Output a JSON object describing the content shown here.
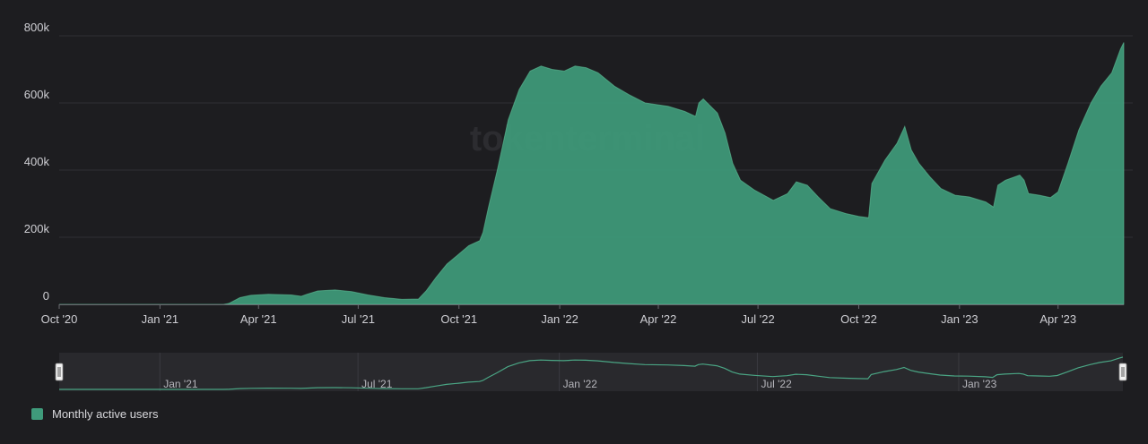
{
  "colors": {
    "background": "#1d1d20",
    "series": "#3f9b7b",
    "grid": "#2f2f34",
    "axis_text": "#cfcfd4",
    "navigator_bg": "#29292d",
    "navigator_line": "#4aa584"
  },
  "watermark": "tokenterminal",
  "chart_data": {
    "type": "area",
    "ylim": [
      0,
      800000
    ],
    "y_ticks": [
      {
        "value": 0,
        "label": "0"
      },
      {
        "value": 200000,
        "label": "200k"
      },
      {
        "value": 400000,
        "label": "400k"
      },
      {
        "value": 600000,
        "label": "600k"
      },
      {
        "value": 800000,
        "label": "800k"
      }
    ],
    "x_range": [
      "2020-10-01",
      "2023-05-31"
    ],
    "x_ticks": [
      {
        "date": "2020-10-01",
        "label": "Oct '20"
      },
      {
        "date": "2021-01-01",
        "label": "Jan '21"
      },
      {
        "date": "2021-04-01",
        "label": "Apr '21"
      },
      {
        "date": "2021-07-01",
        "label": "Jul '21"
      },
      {
        "date": "2021-10-01",
        "label": "Oct '21"
      },
      {
        "date": "2022-01-01",
        "label": "Jan '22"
      },
      {
        "date": "2022-04-01",
        "label": "Apr '22"
      },
      {
        "date": "2022-07-01",
        "label": "Jul '22"
      },
      {
        "date": "2022-10-01",
        "label": "Oct '22"
      },
      {
        "date": "2023-01-01",
        "label": "Jan '23"
      },
      {
        "date": "2023-04-01",
        "label": "Apr '23"
      }
    ],
    "navigator_ticks": [
      {
        "date": "2021-01-01",
        "label": "Jan '21"
      },
      {
        "date": "2021-07-01",
        "label": "Jul '21"
      },
      {
        "date": "2022-01-01",
        "label": "Jan '22"
      },
      {
        "date": "2022-07-01",
        "label": "Jul '22"
      },
      {
        "date": "2023-01-01",
        "label": "Jan '23"
      }
    ],
    "series": [
      {
        "name": "Monthly active users",
        "points": [
          [
            "2020-10-01",
            0
          ],
          [
            "2021-02-28",
            0
          ],
          [
            "2021-03-05",
            3000
          ],
          [
            "2021-03-15",
            20000
          ],
          [
            "2021-03-25",
            27000
          ],
          [
            "2021-04-10",
            30000
          ],
          [
            "2021-05-01",
            28000
          ],
          [
            "2021-05-10",
            24000
          ],
          [
            "2021-05-15",
            30000
          ],
          [
            "2021-05-25",
            40000
          ],
          [
            "2021-06-10",
            43000
          ],
          [
            "2021-06-25",
            38000
          ],
          [
            "2021-07-10",
            28000
          ],
          [
            "2021-07-25",
            20000
          ],
          [
            "2021-08-10",
            15000
          ],
          [
            "2021-08-25",
            16000
          ],
          [
            "2021-09-01",
            40000
          ],
          [
            "2021-09-10",
            80000
          ],
          [
            "2021-09-20",
            120000
          ],
          [
            "2021-10-01",
            150000
          ],
          [
            "2021-10-10",
            175000
          ],
          [
            "2021-10-20",
            190000
          ],
          [
            "2021-10-23",
            215000
          ],
          [
            "2021-10-28",
            290000
          ],
          [
            "2021-11-05",
            400000
          ],
          [
            "2021-11-15",
            550000
          ],
          [
            "2021-11-25",
            640000
          ],
          [
            "2021-12-05",
            695000
          ],
          [
            "2021-12-15",
            710000
          ],
          [
            "2021-12-25",
            700000
          ],
          [
            "2022-01-05",
            695000
          ],
          [
            "2022-01-15",
            710000
          ],
          [
            "2022-01-25",
            705000
          ],
          [
            "2022-02-05",
            690000
          ],
          [
            "2022-02-20",
            650000
          ],
          [
            "2022-03-05",
            625000
          ],
          [
            "2022-03-20",
            600000
          ],
          [
            "2022-04-10",
            590000
          ],
          [
            "2022-04-25",
            575000
          ],
          [
            "2022-05-05",
            560000
          ],
          [
            "2022-05-08",
            600000
          ],
          [
            "2022-05-12",
            612000
          ],
          [
            "2022-05-25",
            570000
          ],
          [
            "2022-06-01",
            510000
          ],
          [
            "2022-06-08",
            420000
          ],
          [
            "2022-06-15",
            370000
          ],
          [
            "2022-06-28",
            340000
          ],
          [
            "2022-07-15",
            310000
          ],
          [
            "2022-07-28",
            330000
          ],
          [
            "2022-08-05",
            365000
          ],
          [
            "2022-08-15",
            355000
          ],
          [
            "2022-08-25",
            320000
          ],
          [
            "2022-09-05",
            285000
          ],
          [
            "2022-09-20",
            270000
          ],
          [
            "2022-10-01",
            262000
          ],
          [
            "2022-10-10",
            258000
          ],
          [
            "2022-10-13",
            360000
          ],
          [
            "2022-10-25",
            430000
          ],
          [
            "2022-11-05",
            480000
          ],
          [
            "2022-11-12",
            530000
          ],
          [
            "2022-11-18",
            460000
          ],
          [
            "2022-11-25",
            420000
          ],
          [
            "2022-12-05",
            380000
          ],
          [
            "2022-12-15",
            345000
          ],
          [
            "2022-12-28",
            325000
          ],
          [
            "2023-01-10",
            320000
          ],
          [
            "2023-01-25",
            305000
          ],
          [
            "2023-02-01",
            290000
          ],
          [
            "2023-02-05",
            355000
          ],
          [
            "2023-02-12",
            370000
          ],
          [
            "2023-02-25",
            385000
          ],
          [
            "2023-03-01",
            370000
          ],
          [
            "2023-03-05",
            330000
          ],
          [
            "2023-03-15",
            325000
          ],
          [
            "2023-03-25",
            318000
          ],
          [
            "2023-04-01",
            335000
          ],
          [
            "2023-04-10",
            420000
          ],
          [
            "2023-04-20",
            520000
          ],
          [
            "2023-05-01",
            600000
          ],
          [
            "2023-05-10",
            650000
          ],
          [
            "2023-05-20",
            690000
          ],
          [
            "2023-05-28",
            760000
          ],
          [
            "2023-05-31",
            780000
          ]
        ]
      }
    ],
    "legend": {
      "position": "bottom-left",
      "label": "Monthly active users"
    }
  }
}
